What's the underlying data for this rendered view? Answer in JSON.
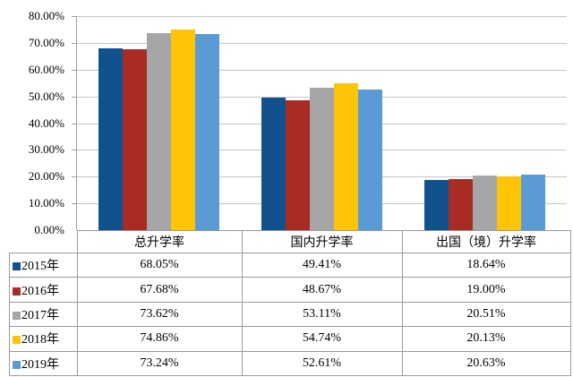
{
  "chart_data": {
    "type": "bar",
    "title": "",
    "xlabel": "",
    "ylabel": "",
    "categories": [
      "总升学率",
      "国内升学率",
      "出国（境）升学率"
    ],
    "series": [
      {
        "name": "2015年",
        "color": "#11518E",
        "values": [
          68.05,
          49.41,
          18.64
        ]
      },
      {
        "name": "2016年",
        "color": "#A92C24",
        "values": [
          67.68,
          48.67,
          19.0
        ]
      },
      {
        "name": "2017年",
        "color": "#A6A6A6",
        "values": [
          73.62,
          53.11,
          20.51
        ]
      },
      {
        "name": "2018年",
        "color": "#FFC408",
        "values": [
          74.86,
          54.74,
          20.13
        ]
      },
      {
        "name": "2019年",
        "color": "#5B9BD5",
        "values": [
          73.24,
          52.61,
          20.63
        ]
      }
    ],
    "value_label_format": "0.00%",
    "ylim": [
      0,
      80
    ],
    "ytick_step": 10,
    "ytick_labels": [
      "80.00%",
      "70.00%",
      "60.00%",
      "50.00%",
      "40.00%",
      "30.00%",
      "20.00%",
      "10.00%",
      "0.00%"
    ],
    "grid": true,
    "legend_position": "data-table-left",
    "colors": {
      "gridline": "#c6c6c6",
      "axis_line": "#9f9f9f",
      "table_border": "#9a9a9a",
      "background": "#ffffff",
      "text": "#000000"
    }
  }
}
